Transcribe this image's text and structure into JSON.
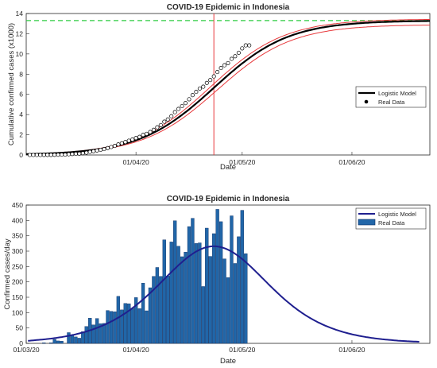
{
  "chart_data": [
    {
      "type": "scatter",
      "title": "COVID-19 Epidemic in Indonesia",
      "xlabel": "Date",
      "ylabel": "Cumulative confirmed cases (x1000)",
      "x_domain": [
        "2020-03-01",
        "2020-06-23"
      ],
      "xticks": [
        {
          "date": "2020-04-01",
          "label": "01/04/20"
        },
        {
          "date": "2020-05-01",
          "label": "01/05/20"
        },
        {
          "date": "2020-06-01",
          "label": "01/06/20"
        }
      ],
      "ylim": [
        0,
        14
      ],
      "yticks": [
        0,
        2,
        4,
        6,
        8,
        10,
        12,
        14
      ],
      "grid": false,
      "legend": {
        "position": "right-middle",
        "entries": [
          "Logistic Model",
          "Real Data"
        ]
      },
      "colors": {
        "model": "#000000",
        "confidence": "#e8393c",
        "asymptote": "#2ecc40",
        "inflection": "#e8393c",
        "points": "#000000"
      },
      "logistic_model": {
        "K": 13.3,
        "r": 0.095,
        "t0": "2020-04-23"
      },
      "confidence_band": {
        "lower_K": 12.9,
        "upper_K": 13.45,
        "lower_t0": "2020-04-24",
        "upper_t0": "2020-04-22"
      },
      "asymptote_y": 13.3,
      "inflection_date": "2020-04-23",
      "real_data": {
        "start_date": "2020-03-02",
        "end_date": "2020-05-03",
        "values": [
          0.002,
          0.002,
          0.002,
          0.002,
          0.004,
          0.004,
          0.006,
          0.019,
          0.027,
          0.034,
          0.034,
          0.069,
          0.096,
          0.117,
          0.134,
          0.172,
          0.227,
          0.309,
          0.369,
          0.45,
          0.514,
          0.579,
          0.686,
          0.79,
          0.893,
          1.046,
          1.155,
          1.285,
          1.414,
          1.528,
          1.677,
          1.79,
          1.986,
          2.092,
          2.273,
          2.491,
          2.738,
          2.956,
          3.293,
          3.512,
          3.842,
          4.241,
          4.557,
          4.839,
          5.136,
          5.516,
          5.923,
          6.248,
          6.575,
          6.76,
          7.135,
          7.418,
          7.775,
          8.211,
          8.607,
          8.882,
          9.096,
          9.511,
          9.771,
          10.118,
          10.551,
          10.843,
          10.843
        ]
      }
    },
    {
      "type": "bar",
      "title": "COVID-19 Epidemic in Indonesia",
      "xlabel": "Date",
      "ylabel": "Confirmed cases/day",
      "x_domain": [
        "2020-03-01",
        "2020-06-23"
      ],
      "xticks": [
        {
          "date": "2020-03-01",
          "label": "01/03/20"
        },
        {
          "date": "2020-04-01",
          "label": "01/04/20"
        },
        {
          "date": "2020-05-01",
          "label": "01/05/20"
        },
        {
          "date": "2020-06-01",
          "label": "01/06/20"
        }
      ],
      "ylim": [
        0,
        450
      ],
      "yticks": [
        0,
        50,
        100,
        150,
        200,
        250,
        300,
        350,
        400,
        450
      ],
      "grid": false,
      "legend": {
        "position": "top-right",
        "entries": [
          "Logistic Model",
          "Real Data"
        ]
      },
      "colors": {
        "bar_fill": "#2166a8",
        "bar_edge": "#0d2e63",
        "model": "#1f1f8f"
      },
      "logistic_model": {
        "K": 13.3,
        "r": 0.095,
        "t0": "2020-04-23",
        "t_end": "2020-06-20"
      },
      "bar_start_date": "2020-03-02",
      "bar_values": [
        0,
        0,
        0,
        0,
        2,
        0,
        2,
        13,
        8,
        7,
        0,
        35,
        27,
        21,
        17,
        38,
        55,
        82,
        60,
        81,
        64,
        65,
        107,
        104,
        103,
        153,
        109,
        130,
        129,
        114,
        149,
        113,
        196,
        106,
        181,
        218,
        247,
        218,
        337,
        219,
        330,
        399,
        316,
        282,
        297,
        380,
        407,
        325,
        327,
        185,
        375,
        283,
        357,
        436,
        396,
        275,
        214,
        415,
        260,
        347,
        433,
        292
      ]
    }
  ]
}
